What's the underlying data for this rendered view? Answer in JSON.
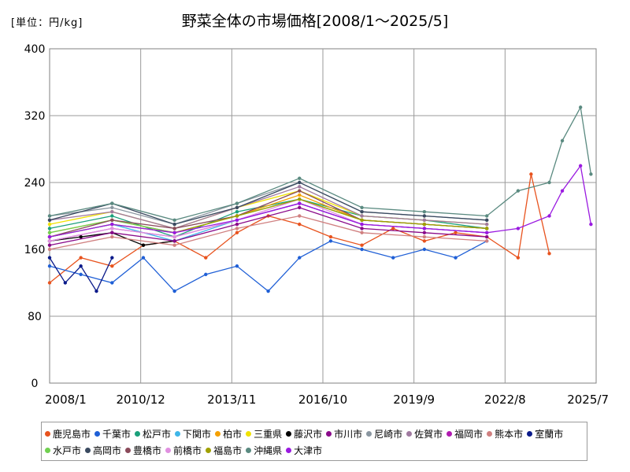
{
  "unit_label": "[単位：円/kg]",
  "chart_data": {
    "type": "line",
    "title": "野菜全体の市場価格[2008/1～2025/5]",
    "xlabel": "",
    "ylabel": "",
    "ylim": [
      0,
      400
    ],
    "yticks": [
      0,
      80,
      160,
      240,
      320,
      400
    ],
    "xticks": [
      "2008/1",
      "2010/12",
      "2013/11",
      "2016/10",
      "2019/9",
      "2022/8",
      "2025/7"
    ],
    "grid": true,
    "legend_position": "bottom",
    "series": [
      {
        "name": "鹿児島市",
        "color": "#e8531e",
        "x": [
          "2008/1",
          "2009/1",
          "2010/1",
          "2011/1",
          "2012/1",
          "2013/1",
          "2014/1",
          "2015/1",
          "2016/1",
          "2017/1",
          "2018/1",
          "2019/1",
          "2020/1",
          "2021/1",
          "2022/1",
          "2023/1",
          "2023/6",
          "2024/1"
        ],
        "values": [
          120,
          150,
          140,
          165,
          170,
          150,
          180,
          200,
          190,
          175,
          165,
          185,
          170,
          180,
          175,
          150,
          250,
          155
        ]
      },
      {
        "name": "千葉市",
        "color": "#1f5fd6",
        "x": [
          "2008/1",
          "2009/1",
          "2010/1",
          "2011/1",
          "2012/1",
          "2013/1",
          "2014/1",
          "2015/1",
          "2016/1",
          "2017/1",
          "2018/1",
          "2019/1",
          "2020/1",
          "2021/1",
          "2022/1"
        ],
        "values": [
          140,
          130,
          120,
          150,
          110,
          130,
          140,
          110,
          150,
          170,
          160,
          150,
          160,
          150,
          170
        ]
      },
      {
        "name": "松戸市",
        "color": "#1aa07a",
        "x": [
          "2008/1",
          "2010/1",
          "2012/1",
          "2014/1",
          "2016/1",
          "2018/1",
          "2020/1",
          "2022/1"
        ],
        "values": [
          185,
          200,
          175,
          205,
          220,
          200,
          195,
          185
        ]
      },
      {
        "name": "下関市",
        "color": "#3fb6e8",
        "x": [
          "2008/1",
          "2010/1",
          "2012/1",
          "2014/1",
          "2016/1",
          "2018/1",
          "2020/1",
          "2022/1"
        ],
        "values": [
          175,
          190,
          170,
          195,
          215,
          190,
          185,
          180
        ]
      },
      {
        "name": "柏市",
        "color": "#f5a000",
        "x": [
          "2008/1",
          "2010/1",
          "2012/1",
          "2014/1",
          "2016/1",
          "2018/1",
          "2020/1",
          "2022/1"
        ],
        "values": [
          180,
          195,
          180,
          200,
          225,
          195,
          190,
          185
        ]
      },
      {
        "name": "三重県",
        "color": "#f0e200",
        "x": [
          "2008/1",
          "2010/1",
          "2012/1",
          "2014/1",
          "2016/1",
          "2018/1",
          "2020/1",
          "2022/1"
        ],
        "values": [
          190,
          205,
          185,
          210,
          230,
          200,
          195,
          190
        ]
      },
      {
        "name": "藤沢市",
        "color": "#000000",
        "x": [
          "2008/1",
          "2009/1",
          "2010/1",
          "2011/1",
          "2012/1"
        ],
        "values": [
          170,
          175,
          180,
          165,
          170
        ]
      },
      {
        "name": "市川市",
        "color": "#8a0a8a",
        "x": [
          "2008/1",
          "2010/1",
          "2012/1",
          "2014/1",
          "2016/1",
          "2018/1",
          "2020/1",
          "2022/1"
        ],
        "values": [
          165,
          180,
          170,
          190,
          210,
          185,
          180,
          175
        ]
      },
      {
        "name": "尼崎市",
        "color": "#8a96a0",
        "x": [
          "2008/1",
          "2010/1",
          "2012/1",
          "2014/1",
          "2016/1",
          "2018/1",
          "2020/1",
          "2022/1"
        ],
        "values": [
          200,
          210,
          190,
          215,
          240,
          205,
          200,
          195
        ]
      },
      {
        "name": "佐賀市",
        "color": "#a07aa0",
        "x": [
          "2008/1",
          "2010/1",
          "2012/1",
          "2014/1",
          "2016/1",
          "2018/1",
          "2020/1",
          "2022/1"
        ],
        "values": [
          195,
          205,
          185,
          210,
          235,
          200,
          195,
          190
        ]
      },
      {
        "name": "福岡市",
        "color": "#b01ab0",
        "x": [
          "2008/1",
          "2010/1",
          "2012/1",
          "2014/1",
          "2016/1",
          "2018/1",
          "2020/1",
          "2022/1"
        ],
        "values": [
          170,
          185,
          175,
          195,
          215,
          190,
          185,
          180
        ]
      },
      {
        "name": "熊本市",
        "color": "#d08080",
        "x": [
          "2008/1",
          "2010/1",
          "2012/1",
          "2014/1",
          "2016/1",
          "2018/1",
          "2020/1",
          "2022/1"
        ],
        "values": [
          160,
          175,
          165,
          185,
          200,
          180,
          175,
          170
        ]
      },
      {
        "name": "室蘭市",
        "color": "#0a1a8a",
        "x": [
          "2008/1",
          "2008/7",
          "2009/1",
          "2009/7",
          "2010/1"
        ],
        "values": [
          150,
          120,
          140,
          110,
          150
        ]
      },
      {
        "name": "水戸市",
        "color": "#70d050",
        "x": [
          "2008/1",
          "2010/1",
          "2012/1",
          "2014/1",
          "2016/1",
          "2018/1",
          "2020/1",
          "2022/1"
        ],
        "values": [
          180,
          195,
          180,
          200,
          220,
          195,
          190,
          185
        ]
      },
      {
        "name": "高岡市",
        "color": "#3a4a60",
        "x": [
          "2008/1",
          "2010/1",
          "2012/1",
          "2014/1",
          "2016/1",
          "2018/1",
          "2020/1",
          "2022/1"
        ],
        "values": [
          195,
          215,
          190,
          210,
          240,
          205,
          200,
          195
        ]
      },
      {
        "name": "豊橋市",
        "color": "#8a4a5a",
        "x": [
          "2008/1",
          "2010/1",
          "2012/1",
          "2014/1",
          "2016/1",
          "2018/1",
          "2020/1",
          "2022/1"
        ],
        "values": [
          175,
          195,
          185,
          200,
          230,
          195,
          190,
          185
        ]
      },
      {
        "name": "前橋市",
        "color": "#e090e0",
        "x": [
          "2008/1",
          "2010/1",
          "2012/1",
          "2014/1",
          "2016/1",
          "2018/1",
          "2020/1",
          "2022/1"
        ],
        "values": [
          170,
          185,
          175,
          195,
          220,
          190,
          185,
          180
        ]
      },
      {
        "name": "福島市",
        "color": "#a0a000",
        "x": [
          "2008/1",
          "2010/1",
          "2012/1",
          "2014/1",
          "2016/1",
          "2018/1",
          "2020/1",
          "2022/1"
        ],
        "values": [
          175,
          190,
          180,
          200,
          220,
          195,
          190,
          185
        ]
      },
      {
        "name": "沖縄県",
        "color": "#5a8a80",
        "x": [
          "2008/1",
          "2010/1",
          "2012/1",
          "2014/1",
          "2016/1",
          "2018/1",
          "2020/1",
          "2022/1",
          "2023/1",
          "2024/1",
          "2024/6",
          "2025/1",
          "2025/5"
        ],
        "values": [
          200,
          215,
          195,
          215,
          245,
          210,
          205,
          200,
          230,
          240,
          290,
          330,
          250
        ]
      },
      {
        "name": "大津市",
        "color": "#9a1ae0",
        "x": [
          "2008/1",
          "2010/1",
          "2012/1",
          "2014/1",
          "2016/1",
          "2018/1",
          "2020/1",
          "2022/1",
          "2023/1",
          "2024/1",
          "2024/6",
          "2025/1",
          "2025/5"
        ],
        "values": [
          175,
          190,
          180,
          195,
          215,
          190,
          185,
          180,
          185,
          200,
          230,
          260,
          190
        ]
      }
    ]
  }
}
